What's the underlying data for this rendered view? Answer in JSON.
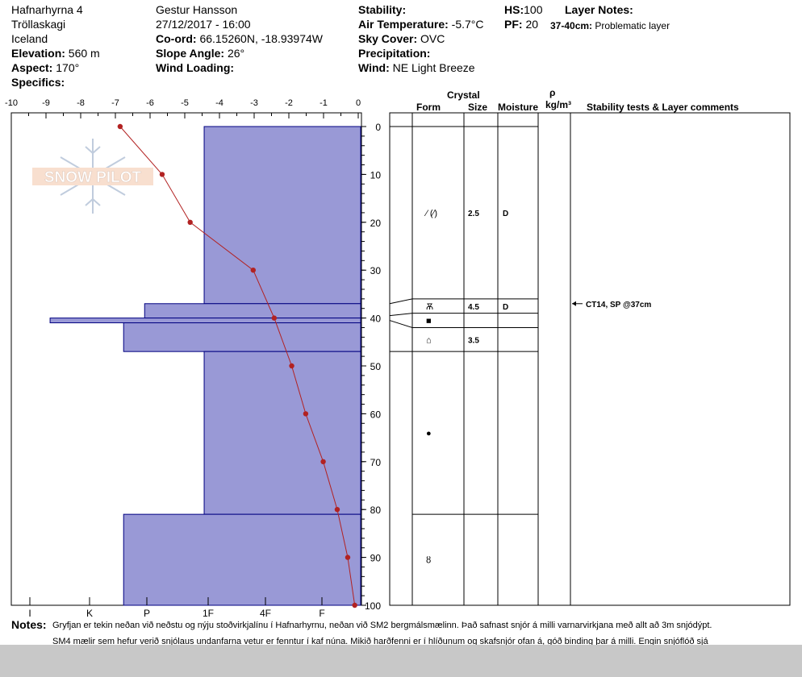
{
  "header": {
    "location": "Hafnarhyrna 4",
    "range": "Tröllaskagi",
    "country": "Iceland",
    "elevation_label": "Elevation:",
    "elevation_value": "560 m",
    "aspect_label": "Aspect:",
    "aspect_value": "170°",
    "specifics_label": "Specifics:",
    "observer": "Gestur Hansson",
    "datetime": "27/12/2017 - 16:00",
    "coord_label": "Co-ord:",
    "coord_value": "66.15260N, -18.93974W",
    "slope_label": "Slope Angle:",
    "slope_value": "26°",
    "wind_loading_label": "Wind Loading:",
    "stability_label": "Stability:",
    "air_temp_label": "Air Temperature:",
    "air_temp_value": "-5.7°C",
    "sky_label": "Sky Cover:",
    "sky_value": "OVC",
    "precip_label": "Precipitation:",
    "wind_label": "Wind:",
    "wind_value": "NE Light Breeze",
    "hs_label": "HS:",
    "hs_value": "100",
    "pf_label": "PF:",
    "pf_value": "20",
    "layer_notes_label": "Layer Notes:",
    "layer_note_range": "37-40cm:",
    "layer_note_text": "Problematic layer"
  },
  "table_headers": {
    "crystal": "Crystal",
    "form": "Form",
    "size": "Size",
    "moisture": "Moisture",
    "rho": "ρ",
    "density_unit": "kg/m³",
    "stability": "Stability tests & Layer comments"
  },
  "notes": {
    "label": "Notes:",
    "line1": "Gryfjan er tekin neðan við neðstu og nýju stoðvirkjalínu í Hafnarhyrnu, neðan við SM2 bergmálsmælinn. Það safnast snjór á milli varnarvirkjana með allt að 3m snjódýpt.",
    "line2": "SM4 mælir sem hefur verið snjólaus undanfarna vetur er fenntur í kaf núna. Mikið harðfenni er í hlíðunum og skafsnjór ofan á, góð binding þar á milli. Engin snjóflóð sjá"
  },
  "watermark": {
    "text": "SNOW PILOT"
  },
  "colors": {
    "hardness_fill": "#9999d6",
    "hardness_stroke": "#000080",
    "temp_line": "#b22222"
  },
  "chart_data": {
    "type": "area",
    "temp_axis": {
      "ticks": [
        "-10",
        "-9",
        "-8",
        "-7",
        "-6",
        "-5",
        "-4",
        "-3",
        "-2",
        "-1",
        "0"
      ],
      "range": [
        -10,
        0
      ]
    },
    "depth_axis": {
      "ticks": [
        "0",
        "10",
        "20",
        "30",
        "40",
        "50",
        "60",
        "70",
        "80",
        "90",
        "100"
      ],
      "range": [
        0,
        100
      ]
    },
    "hardness_axis": {
      "labels": [
        "I",
        "K",
        "P",
        "1F",
        "4F",
        "F"
      ]
    },
    "temperature_profile": [
      {
        "depth": 0,
        "temp": -6.8
      },
      {
        "depth": 10,
        "temp": -5.6
      },
      {
        "depth": 20,
        "temp": -4.8
      },
      {
        "depth": 30,
        "temp": -3.0
      },
      {
        "depth": 40,
        "temp": -2.4
      },
      {
        "depth": 50,
        "temp": -1.9
      },
      {
        "depth": 60,
        "temp": -1.5
      },
      {
        "depth": 70,
        "temp": -1.0
      },
      {
        "depth": 80,
        "temp": -0.6
      },
      {
        "depth": 90,
        "temp": -0.3
      },
      {
        "depth": 100,
        "temp": -0.1
      }
    ],
    "hardness_layers": [
      {
        "top": 0,
        "bottom": 37,
        "hardness": -4.4
      },
      {
        "top": 37,
        "bottom": 40,
        "hardness": -6.1
      },
      {
        "top": 40,
        "bottom": 41,
        "hardness": -8.8
      },
      {
        "top": 41,
        "bottom": 47,
        "hardness": -6.7
      },
      {
        "top": 47,
        "bottom": 81,
        "hardness": -4.4
      },
      {
        "top": 81,
        "bottom": 100,
        "hardness": -6.7
      }
    ],
    "layers": [
      {
        "top": 0,
        "bottom": 36,
        "form": "⁄ (⁄)",
        "size": "2.5",
        "moisture": "D"
      },
      {
        "top": 36,
        "bottom": 39,
        "form": "Ѫ",
        "size": "4.5",
        "moisture": "D"
      },
      {
        "top": 39,
        "bottom": 42,
        "form": "■",
        "size": "",
        "moisture": ""
      },
      {
        "top": 42,
        "bottom": 47,
        "form": "⌂",
        "size": "3.5",
        "moisture": ""
      },
      {
        "top": 47,
        "bottom": 81,
        "form": "●",
        "size": "",
        "moisture": ""
      },
      {
        "top": 81,
        "bottom": 100,
        "form": "ȣ",
        "size": "",
        "moisture": ""
      }
    ],
    "stability_tests": [
      {
        "depth": 37,
        "text": "CT14, SP @37cm"
      }
    ]
  }
}
